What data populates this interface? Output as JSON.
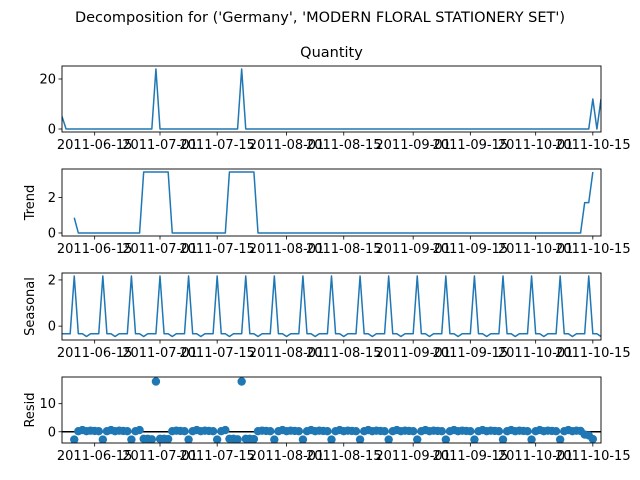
{
  "figure": {
    "suptitle": "Decomposition for ('Germany', 'MODERN FLORAL STATIONERY SET')"
  },
  "chart_data": [
    {
      "type": "line",
      "panel": "observed",
      "title": "Quantity",
      "ylabel": "",
      "color": "#1f77b4",
      "xlim": [
        "2011-06-07",
        "2011-10-17"
      ],
      "ylim": [
        -1.2,
        25.2
      ],
      "yticks": [
        0,
        20
      ],
      "xtick_labels": [
        "2011-06-15",
        "2011-07-01",
        "2011-07-15",
        "2011-08-01",
        "2011-08-15",
        "2011-09-01",
        "2011-09-15",
        "2011-10-01",
        "2011-10-15"
      ],
      "x": [
        "2011-06-07",
        "2011-06-08",
        "2011-06-29",
        "2011-06-30",
        "2011-07-01",
        "2011-07-20",
        "2011-07-21",
        "2011-07-22",
        "2011-10-13",
        "2011-10-14",
        "2011-10-15",
        "2011-10-16",
        "2011-10-17"
      ],
      "values": [
        5,
        0,
        0,
        24,
        0,
        0,
        24,
        0,
        0,
        0,
        12,
        0,
        12
      ]
    },
    {
      "type": "line",
      "panel": "trend",
      "title": "",
      "ylabel": "Trend",
      "color": "#1f77b4",
      "xlim": [
        "2011-06-07",
        "2011-10-17"
      ],
      "ylim": [
        -0.17,
        3.6
      ],
      "yticks": [
        0,
        2
      ],
      "xtick_labels": [
        "2011-06-15",
        "2011-07-01",
        "2011-07-15",
        "2011-08-01",
        "2011-08-15",
        "2011-09-01",
        "2011-09-15",
        "2011-10-01",
        "2011-10-15"
      ],
      "x": [
        "2011-06-10",
        "2011-06-11",
        "2011-06-26",
        "2011-06-27",
        "2011-07-03",
        "2011-07-04",
        "2011-07-17",
        "2011-07-18",
        "2011-07-24",
        "2011-07-25",
        "2011-10-12",
        "2011-10-13",
        "2011-10-14",
        "2011-10-15"
      ],
      "values": [
        0.86,
        0,
        0,
        3.43,
        3.43,
        0,
        0,
        3.43,
        3.43,
        0,
        0,
        1.71,
        1.71,
        3.43
      ]
    },
    {
      "type": "line",
      "panel": "seasonal",
      "title": "",
      "ylabel": "Seasonal",
      "color": "#1f77b4",
      "period_days": 7,
      "xlim": [
        "2011-06-07",
        "2011-10-17"
      ],
      "ylim": [
        -0.6,
        2.3
      ],
      "yticks": [
        0,
        2
      ],
      "xtick_labels": [
        "2011-06-15",
        "2011-07-01",
        "2011-07-15",
        "2011-08-01",
        "2011-08-15",
        "2011-09-01",
        "2011-09-15",
        "2011-10-01",
        "2011-10-15"
      ],
      "cycle_start": "2011-06-07",
      "cycle_values": [
        -0.33,
        -0.33,
        -0.33,
        2.17,
        -0.33,
        -0.33,
        -0.45
      ]
    },
    {
      "type": "scatter",
      "panel": "resid",
      "title": "",
      "ylabel": "Resid",
      "color": "#1f77b4",
      "zero_line": true,
      "xlim": [
        "2011-06-07",
        "2011-10-17"
      ],
      "ylim": [
        -4,
        19.5
      ],
      "yticks": [
        0,
        10
      ],
      "xtick_labels": [
        "2011-06-15",
        "2011-07-01",
        "2011-07-15",
        "2011-08-01",
        "2011-08-15",
        "2011-09-01",
        "2011-09-15",
        "2011-10-01",
        "2011-10-15"
      ],
      "x_start": "2011-06-10",
      "x_end": "2011-10-15",
      "baseline_values": [
        -2.8,
        0.2,
        0.6,
        0.2,
        0.4,
        0.3,
        0.2
      ],
      "overrides": [
        {
          "x": "2011-06-27",
          "value": -2.5
        },
        {
          "x": "2011-06-28",
          "value": -2.5
        },
        {
          "x": "2011-06-29",
          "value": -2.7
        },
        {
          "x": "2011-06-30",
          "value": 17.9
        },
        {
          "x": "2011-07-01",
          "value": -2.5
        },
        {
          "x": "2011-07-02",
          "value": -2.5
        },
        {
          "x": "2011-07-03",
          "value": -2.6
        },
        {
          "x": "2011-07-18",
          "value": -2.5
        },
        {
          "x": "2011-07-19",
          "value": -2.5
        },
        {
          "x": "2011-07-20",
          "value": -2.7
        },
        {
          "x": "2011-07-21",
          "value": 17.9
        },
        {
          "x": "2011-07-22",
          "value": -2.5
        },
        {
          "x": "2011-07-23",
          "value": -2.5
        },
        {
          "x": "2011-07-24",
          "value": -2.6
        },
        {
          "x": "2011-10-13",
          "value": -1.0
        },
        {
          "x": "2011-10-14",
          "value": -1.3
        },
        {
          "x": "2011-10-15",
          "value": -2.6
        }
      ]
    }
  ]
}
